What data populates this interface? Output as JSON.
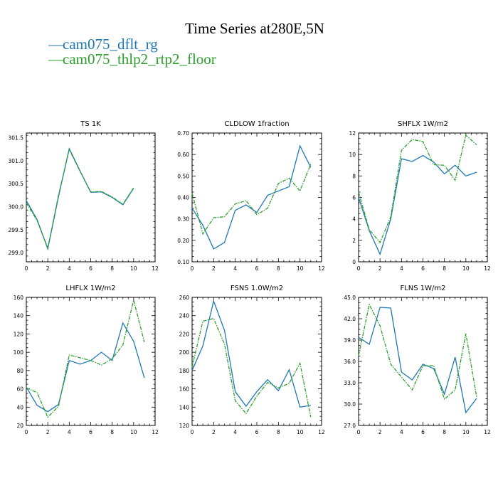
{
  "page": {
    "title": "Time Series at280E,5N",
    "legend": [
      {
        "name": "cam075_dflt_rg",
        "color": "#1f77b4"
      },
      {
        "name": "cam075_thlp2_rtp2_floor",
        "color": "#2ca02c"
      }
    ]
  },
  "chart_data": [
    {
      "type": "line",
      "title": "TS   1K",
      "x": [
        0,
        1,
        2,
        3,
        4,
        5,
        6,
        7,
        8,
        9,
        10,
        11
      ],
      "xlim": [
        0,
        12
      ],
      "xticks": [
        0,
        2,
        4,
        6,
        8,
        10,
        12
      ],
      "ylim": [
        298.8,
        301.6
      ],
      "yticks": [
        299.0,
        299.5,
        300.0,
        300.5,
        301.0,
        301.5
      ],
      "ytick_labels": [
        "299.0",
        "299.5",
        "300.0",
        "300.5",
        "301.0",
        "301.5"
      ],
      "series": [
        {
          "name": "cam075_dflt_rg",
          "values": [
            300.13,
            299.72,
            299.08,
            300.22,
            301.26,
            300.78,
            300.31,
            300.32,
            300.2,
            300.04,
            300.4,
            null
          ]
        },
        {
          "name": "cam075_thlp2_rtp2_floor",
          "values": [
            300.08,
            299.7,
            299.1,
            300.25,
            301.24,
            300.77,
            300.32,
            300.33,
            300.21,
            300.05,
            300.41,
            null
          ]
        }
      ]
    },
    {
      "type": "line",
      "title": "CLDLOW   1fraction",
      "x": [
        0,
        1,
        2,
        3,
        4,
        5,
        6,
        7,
        8,
        9,
        10,
        11
      ],
      "xlim": [
        0,
        12
      ],
      "xticks": [
        0,
        2,
        4,
        6,
        8,
        10,
        12
      ],
      "ylim": [
        0.1,
        0.7
      ],
      "yticks": [
        0.1,
        0.2,
        0.3,
        0.4,
        0.5,
        0.6,
        0.7
      ],
      "ytick_labels": [
        "0.10",
        "0.20",
        "0.30",
        "0.40",
        "0.50",
        "0.60",
        "0.70"
      ],
      "series": [
        {
          "name": "cam075_dflt_rg",
          "values": [
            0.35,
            0.27,
            0.16,
            0.19,
            0.34,
            0.365,
            0.33,
            0.41,
            0.43,
            0.45,
            0.64,
            0.54
          ]
        },
        {
          "name": "cam075_thlp2_rtp2_floor",
          "values": [
            0.42,
            0.23,
            0.305,
            0.31,
            0.37,
            0.385,
            0.32,
            0.35,
            0.465,
            0.49,
            0.43,
            0.555
          ]
        }
      ]
    },
    {
      "type": "line",
      "title": "SHFLX   1W/m2",
      "x": [
        0,
        1,
        2,
        3,
        4,
        5,
        6,
        7,
        8,
        9,
        10,
        11
      ],
      "xlim": [
        0,
        12
      ],
      "xticks": [
        0,
        2,
        4,
        6,
        8,
        10,
        12
      ],
      "ylim": [
        0,
        12
      ],
      "yticks": [
        0,
        2,
        4,
        6,
        8,
        10,
        12
      ],
      "ytick_labels": [
        "0",
        "2",
        "4",
        "6",
        "8",
        "10",
        "12"
      ],
      "series": [
        {
          "name": "cam075_dflt_rg",
          "values": [
            6.0,
            2.9,
            0.7,
            4.0,
            9.6,
            9.35,
            9.9,
            9.3,
            8.2,
            9.0,
            8.0,
            8.35
          ]
        },
        {
          "name": "cam075_thlp2_rtp2_floor",
          "values": [
            6.5,
            3.0,
            1.8,
            4.2,
            10.4,
            11.4,
            11.2,
            9.05,
            9.0,
            7.6,
            11.8,
            10.9
          ]
        }
      ]
    },
    {
      "type": "line",
      "title": "LHFLX   1W/m2",
      "x": [
        0,
        1,
        2,
        3,
        4,
        5,
        6,
        7,
        8,
        9,
        10,
        11
      ],
      "xlim": [
        0,
        12
      ],
      "xticks": [
        0,
        2,
        4,
        6,
        8,
        10,
        12
      ],
      "ylim": [
        20,
        160
      ],
      "yticks": [
        20,
        40,
        60,
        80,
        100,
        120,
        140,
        160
      ],
      "ytick_labels": [
        "20",
        "40",
        "60",
        "80",
        "100",
        "120",
        "140",
        "160"
      ],
      "series": [
        {
          "name": "cam075_dflt_rg",
          "values": [
            62,
            42,
            35,
            43,
            91,
            87,
            91,
            100,
            91,
            132,
            112,
            72
          ]
        },
        {
          "name": "cam075_thlp2_rtp2_floor",
          "values": [
            61,
            56,
            29,
            41,
            97,
            94,
            91,
            86,
            93,
            108,
            157,
            111
          ]
        }
      ]
    },
    {
      "type": "line",
      "title": "FSNS   1.0W/m2",
      "x": [
        0,
        1,
        2,
        3,
        4,
        5,
        6,
        7,
        8,
        9,
        10,
        11
      ],
      "xlim": [
        0,
        12
      ],
      "xticks": [
        0,
        2,
        4,
        6,
        8,
        10,
        12
      ],
      "ylim": [
        120,
        260
      ],
      "yticks": [
        120,
        140,
        160,
        180,
        200,
        220,
        240,
        260
      ],
      "ytick_labels": [
        "120",
        "140",
        "160",
        "180",
        "200",
        "220",
        "240",
        "260"
      ],
      "series": [
        {
          "name": "cam075_dflt_rg",
          "values": [
            180,
            207,
            256,
            224,
            157,
            141,
            157,
            170,
            158,
            181,
            140,
            142
          ]
        },
        {
          "name": "cam075_thlp2_rtp2_floor",
          "values": [
            184,
            234,
            237,
            209,
            147,
            133,
            152,
            167,
            161,
            166,
            188,
            129
          ]
        }
      ]
    },
    {
      "type": "line",
      "title": "FLNS   1W/m2",
      "x": [
        0,
        1,
        2,
        3,
        4,
        5,
        6,
        7,
        8,
        9,
        10,
        11
      ],
      "xlim": [
        0,
        12
      ],
      "xticks": [
        0,
        2,
        4,
        6,
        8,
        10,
        12
      ],
      "ylim": [
        27.0,
        45.0
      ],
      "yticks": [
        27.0,
        30.0,
        33.0,
        36.0,
        39.0,
        42.0,
        45.0
      ],
      "ytick_labels": [
        "27.0",
        "30.0",
        "33.0",
        "36.0",
        "39.0",
        "42.0",
        "45.0"
      ],
      "series": [
        {
          "name": "cam075_dflt_rg",
          "values": [
            39.4,
            38.4,
            43.6,
            43.5,
            34.5,
            33.4,
            35.6,
            35.0,
            31.4,
            36.6,
            28.8,
            30.8
          ]
        },
        {
          "name": "cam075_thlp2_rtp2_floor",
          "values": [
            36.8,
            44.0,
            41.0,
            35.6,
            33.8,
            32.0,
            35.4,
            35.4,
            30.7,
            32.0,
            39.9,
            31.0
          ]
        }
      ]
    }
  ]
}
